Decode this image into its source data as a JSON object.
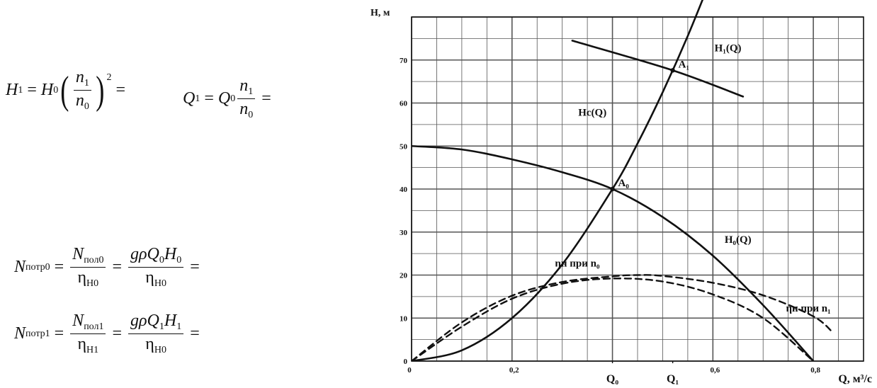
{
  "formulas": {
    "f1": {
      "lhs": "H",
      "lhs_sub": "1",
      "rhs": "H",
      "rhs_sub": "0",
      "num": "n",
      "num_sub": "1",
      "den": "n",
      "den_sub": "0",
      "power": "2",
      "tail": "="
    },
    "f2": {
      "lhs": "Q",
      "lhs_sub": "1",
      "rhs": "Q",
      "rhs_sub": "0",
      "num": "n",
      "num_sub": "1",
      "den": "n",
      "den_sub": "0",
      "tail": "="
    },
    "f3": {
      "lhs": "N",
      "lhs_sub": "потр0",
      "f1_num": "N",
      "f1_num_sub": "пол0",
      "f1_den": "η",
      "f1_den_sub": "H0",
      "f2_num": "gρQ",
      "f2_num_sub": "0",
      "f2_num_2": "H",
      "f2_num_sub_2": "0",
      "f2_den": "η",
      "f2_den_sub": "H0",
      "tail": "="
    },
    "f4": {
      "lhs": "N",
      "lhs_sub": "потр1",
      "f1_num": "N",
      "f1_num_sub": "пол1",
      "f1_den": "η",
      "f1_den_sub": "H1",
      "f2_num": "gρQ",
      "f2_num_sub": "1",
      "f2_num_2": "H",
      "f2_num_sub_2": "1",
      "f2_den": "η",
      "f2_den_sub": "H0",
      "tail": "="
    }
  },
  "chart_data": {
    "type": "line",
    "ylabel": "H, м",
    "xlabel": "Q, м³/с",
    "xlim": [
      0,
      0.9
    ],
    "ylim": [
      0,
      80
    ],
    "xticks": [
      {
        "value": 0,
        "label": "0"
      },
      {
        "value": 0.2,
        "label": "0,2"
      },
      {
        "value": 0.6,
        "label": "0,6"
      },
      {
        "value": 0.8,
        "label": "0,8"
      }
    ],
    "yticks": [
      {
        "value": 0,
        "label": "0"
      },
      {
        "value": 10,
        "label": "10"
      },
      {
        "value": 20,
        "label": "20"
      },
      {
        "value": 30,
        "label": "30"
      },
      {
        "value": 40,
        "label": "40"
      },
      {
        "value": 50,
        "label": "50"
      },
      {
        "value": 60,
        "label": "60"
      },
      {
        "value": 70,
        "label": "70"
      }
    ],
    "grid": true,
    "x_markers": [
      {
        "value": 0.4,
        "label": "Q₀"
      },
      {
        "value": 0.52,
        "label": "Q₁"
      }
    ],
    "series": [
      {
        "name": "H₀(Q)",
        "style": "solid",
        "x": [
          0,
          0.1,
          0.2,
          0.3,
          0.4,
          0.5,
          0.6,
          0.7,
          0.8
        ],
        "y": [
          50,
          49.2,
          46.9,
          43.9,
          40,
          33.5,
          24.5,
          13,
          0
        ]
      },
      {
        "name": "Hc(Q)",
        "style": "solid",
        "x": [
          0,
          0.1,
          0.2,
          0.3,
          0.4,
          0.45,
          0.5,
          0.55,
          0.6
        ],
        "y": [
          0,
          2.5,
          10,
          22.5,
          40,
          50.6,
          62.5,
          75.6,
          90
        ]
      },
      {
        "name": "H₁(Q)",
        "style": "solid",
        "x": [
          0.32,
          0.52,
          0.66
        ],
        "y": [
          74.5,
          67.6,
          61.5
        ]
      },
      {
        "name": "ηн при n₀",
        "style": "dashed",
        "x": [
          0,
          0.1,
          0.2,
          0.3,
          0.4,
          0.5,
          0.6,
          0.7,
          0.8
        ],
        "y": [
          0,
          8,
          14.5,
          18,
          19.2,
          18.5,
          15.5,
          10,
          0
        ]
      },
      {
        "name": "ηн при n₁",
        "style": "dashed",
        "x": [
          0,
          0.1,
          0.2,
          0.3,
          0.4,
          0.45,
          0.5,
          0.6,
          0.7,
          0.8,
          0.84
        ],
        "y": [
          0,
          9,
          15.2,
          18.4,
          19.7,
          20,
          19.8,
          18.2,
          15.3,
          10.4,
          6.5
        ]
      }
    ],
    "annotations": [
      {
        "text": "A₀",
        "x": 0.4,
        "y": 40
      },
      {
        "text": "A₁",
        "x": 0.52,
        "y": 67.6
      }
    ],
    "curve_labels": [
      {
        "text": "H₁(Q)",
        "x": 0.63,
        "y": 72
      },
      {
        "text": "Hc(Q)",
        "x": 0.36,
        "y": 57
      },
      {
        "text": "H₀(Q)",
        "x": 0.65,
        "y": 27.5
      },
      {
        "text": "ηн при n₀",
        "x": 0.33,
        "y": 22
      },
      {
        "text": "ηн при n₁",
        "x": 0.79,
        "y": 11.5
      }
    ],
    "colors": {
      "line": "#111111",
      "grid": "#555555",
      "background": "#ffffff"
    }
  }
}
